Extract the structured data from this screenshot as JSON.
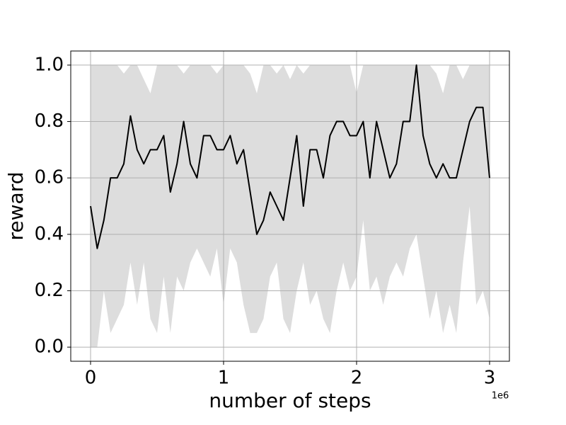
{
  "chart_data": {
    "type": "line",
    "xlabel": "number of steps",
    "ylabel": "reward",
    "x_offset_label": "1e6",
    "x": [
      0,
      0.05,
      0.1,
      0.15,
      0.2,
      0.25,
      0.3,
      0.35,
      0.4,
      0.45,
      0.5,
      0.55,
      0.6,
      0.65,
      0.7,
      0.75,
      0.8,
      0.85,
      0.9,
      0.95,
      1.0,
      1.05,
      1.1,
      1.15,
      1.2,
      1.25,
      1.3,
      1.35,
      1.4,
      1.45,
      1.5,
      1.55,
      1.6,
      1.65,
      1.7,
      1.75,
      1.8,
      1.85,
      1.9,
      1.95,
      2.0,
      2.05,
      2.1,
      2.15,
      2.2,
      2.25,
      2.3,
      2.35,
      2.4,
      2.45,
      2.5,
      2.55,
      2.6,
      2.65,
      2.7,
      2.75,
      2.8,
      2.85,
      2.9,
      2.95,
      3.0
    ],
    "values": [
      0.5,
      0.35,
      0.45,
      0.6,
      0.6,
      0.65,
      0.82,
      0.7,
      0.65,
      0.7,
      0.7,
      0.75,
      0.55,
      0.65,
      0.8,
      0.65,
      0.6,
      0.75,
      0.75,
      0.7,
      0.7,
      0.75,
      0.65,
      0.7,
      0.55,
      0.4,
      0.45,
      0.55,
      0.5,
      0.45,
      0.6,
      0.75,
      0.5,
      0.7,
      0.7,
      0.6,
      0.75,
      0.8,
      0.8,
      0.75,
      0.75,
      0.8,
      0.6,
      0.8,
      0.7,
      0.6,
      0.65,
      0.8,
      0.8,
      1.0,
      0.75,
      0.65,
      0.6,
      0.65,
      0.6,
      0.6,
      0.7,
      0.8,
      0.85,
      0.85,
      0.6
    ],
    "band_upper": [
      1,
      1,
      1,
      1,
      1,
      0.97,
      1,
      1,
      0.95,
      0.9,
      1,
      1,
      1,
      1,
      0.97,
      1,
      1,
      1,
      1,
      0.97,
      1,
      1,
      1,
      1,
      0.97,
      0.9,
      1,
      1,
      0.97,
      1,
      0.95,
      1,
      0.97,
      1,
      1,
      1,
      1,
      1,
      1,
      1,
      0.9,
      1,
      1,
      1,
      1,
      1,
      1,
      1,
      1,
      1,
      1,
      1,
      0.97,
      0.9,
      1,
      1,
      0.95,
      1,
      1,
      1,
      1
    ],
    "band_lower": [
      0,
      0,
      0.2,
      0.05,
      0.1,
      0.15,
      0.3,
      0.15,
      0.3,
      0.1,
      0.05,
      0.25,
      0.05,
      0.25,
      0.2,
      0.3,
      0.35,
      0.3,
      0.25,
      0.35,
      0.15,
      0.35,
      0.3,
      0.15,
      0.05,
      0.05,
      0.1,
      0.25,
      0.3,
      0.1,
      0.05,
      0.2,
      0.3,
      0.15,
      0.2,
      0.1,
      0.05,
      0.2,
      0.3,
      0.2,
      0.25,
      0.45,
      0.2,
      0.25,
      0.15,
      0.25,
      0.3,
      0.25,
      0.35,
      0.4,
      0.25,
      0.1,
      0.2,
      0.05,
      0.15,
      0.05,
      0.3,
      0.5,
      0.15,
      0.2,
      0.1
    ],
    "color": "#000000",
    "band_color": "#dddddd",
    "xlim": [
      -0.149,
      3.149
    ],
    "ylim": [
      -0.05,
      1.05
    ],
    "xticks": [
      0,
      1,
      2,
      3
    ],
    "yticks": [
      {
        "value": 0,
        "label": "0.0"
      },
      {
        "value": 0.2,
        "label": "0.2"
      },
      {
        "value": 0.4,
        "label": "0.4"
      },
      {
        "value": 0.6,
        "label": "0.6"
      },
      {
        "value": 0.8,
        "label": "0.8"
      },
      {
        "value": 1,
        "label": "1.0"
      }
    ],
    "grid": true
  }
}
